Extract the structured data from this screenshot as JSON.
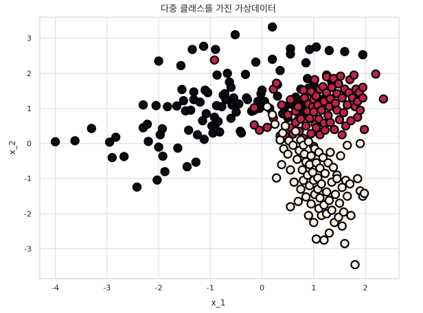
{
  "chart_data": {
    "type": "scatter",
    "title": "다중 클래스를 가진 가상데이터",
    "xlabel": "x_1",
    "ylabel": "x_2",
    "xlim": [
      -4.3,
      2.65
    ],
    "ylim": [
      -3.85,
      3.6
    ],
    "xticks": [
      -4,
      -3,
      -2,
      -1,
      0,
      1,
      2
    ],
    "yticks": [
      -3,
      -2,
      -1,
      0,
      1,
      2,
      3
    ],
    "grid": true,
    "legend": "none",
    "series": [
      {
        "color": "#0b0b18",
        "points": [
          [
            -4.0,
            0.05
          ],
          [
            -3.62,
            0.08
          ],
          [
            -3.3,
            0.43
          ],
          [
            -2.95,
            0.04
          ],
          [
            -2.9,
            -0.4
          ],
          [
            -2.83,
            0.18
          ],
          [
            -2.67,
            -0.37
          ],
          [
            -2.42,
            -1.24
          ],
          [
            -2.3,
            1.1
          ],
          [
            -2.3,
            0.45
          ],
          [
            -2.22,
            0.55
          ],
          [
            -2.2,
            0.06
          ],
          [
            -2.05,
            1.08
          ],
          [
            -2.03,
            -1.04
          ],
          [
            -2.0,
            2.35
          ],
          [
            -2.0,
            -0.1
          ],
          [
            -1.97,
            0.25
          ],
          [
            -1.93,
            0.42
          ],
          [
            -1.92,
            -0.36
          ],
          [
            -1.88,
            -0.8
          ],
          [
            -1.83,
            1.05
          ],
          [
            -1.65,
            1.07
          ],
          [
            -1.63,
            -0.13
          ],
          [
            -1.57,
            2.22
          ],
          [
            -1.55,
            1.54
          ],
          [
            -1.52,
            1.22
          ],
          [
            -1.48,
            0.93
          ],
          [
            -1.45,
            -0.66
          ],
          [
            -1.42,
            0.38
          ],
          [
            -1.38,
            0.95
          ],
          [
            -1.35,
            2.68
          ],
          [
            -1.32,
            1.25
          ],
          [
            -1.32,
            1.47
          ],
          [
            -1.28,
            -0.53
          ],
          [
            -1.25,
            0.25
          ],
          [
            -1.2,
            1.18
          ],
          [
            -1.15,
            0.65
          ],
          [
            -1.13,
            2.77
          ],
          [
            -1.12,
            0.12
          ],
          [
            -1.1,
            1.52
          ],
          [
            -1.08,
            0.85
          ],
          [
            -1.05,
            1.45
          ],
          [
            -0.97,
            0.5
          ],
          [
            -0.95,
            0.3
          ],
          [
            -0.92,
            0.75
          ],
          [
            -0.9,
            2.68
          ],
          [
            -0.9,
            0.55
          ],
          [
            -0.88,
            1.08
          ],
          [
            -0.87,
            1.95
          ],
          [
            -0.85,
            0.63
          ],
          [
            -0.82,
            0.33
          ],
          [
            -0.78,
            1.05
          ],
          [
            -0.75,
            1.38
          ],
          [
            -0.72,
            1.42
          ],
          [
            -0.7,
            1.25
          ],
          [
            -0.67,
            2.0
          ],
          [
            -0.63,
            1.75
          ],
          [
            -0.6,
            1.6
          ],
          [
            -0.6,
            0.72
          ],
          [
            -0.58,
            1.1
          ],
          [
            -0.55,
            1.3
          ],
          [
            -0.52,
            3.1
          ],
          [
            -0.5,
            0.9
          ],
          [
            -0.45,
            1.13
          ],
          [
            -0.42,
            0.35
          ],
          [
            -0.4,
            0.3
          ],
          [
            -0.32,
            1.97
          ],
          [
            -0.3,
            1.3
          ],
          [
            -0.28,
            1.25
          ],
          [
            -0.2,
            0.92
          ],
          [
            -0.15,
            0.95
          ],
          [
            -0.12,
            2.32
          ],
          [
            -0.08,
            1.2
          ],
          [
            -0.05,
            1.0
          ],
          [
            -0.02,
            1.42
          ],
          [
            0.0,
            1.52
          ],
          [
            0.05,
            1.2
          ],
          [
            0.1,
            1.05
          ],
          [
            0.15,
            1.0
          ],
          [
            0.2,
            3.32
          ],
          [
            0.2,
            2.4
          ],
          [
            0.3,
            1.68
          ],
          [
            0.3,
            1.35
          ],
          [
            0.35,
            2.08
          ],
          [
            0.4,
            0.85
          ],
          [
            0.45,
            1.06
          ],
          [
            0.5,
            0.73
          ],
          [
            0.55,
            2.7
          ],
          [
            0.55,
            2.55
          ],
          [
            0.6,
            1.1
          ],
          [
            0.65,
            1.32
          ],
          [
            0.7,
            1.12
          ],
          [
            0.7,
            0.68
          ],
          [
            0.72,
            0.93
          ],
          [
            0.75,
            1.55
          ],
          [
            0.75,
            1.08
          ],
          [
            0.8,
            0.82
          ],
          [
            0.82,
            1.3
          ],
          [
            0.85,
            2.3
          ],
          [
            0.88,
            1.85
          ],
          [
            0.9,
            1.58
          ],
          [
            0.92,
            2.68
          ],
          [
            0.95,
            1.1
          ],
          [
            0.98,
            1.43
          ],
          [
            1.0,
            1.7
          ],
          [
            1.03,
            1.3
          ],
          [
            1.05,
            2.75
          ],
          [
            1.1,
            1.53
          ],
          [
            1.15,
            1.12
          ],
          [
            1.2,
            1.28
          ],
          [
            1.25,
            1.95
          ],
          [
            1.3,
            2.65
          ],
          [
            1.35,
            1.75
          ],
          [
            1.45,
            1.85
          ],
          [
            1.6,
            2.62
          ],
          [
            1.95,
            2.53
          ]
        ]
      },
      {
        "color": "#c0224a",
        "points": [
          [
            -0.92,
            2.38
          ],
          [
            -0.15,
            1.02
          ],
          [
            -0.15,
            0.53
          ],
          [
            -0.05,
            0.38
          ],
          [
            0.1,
            0.46
          ],
          [
            0.22,
            1.55
          ],
          [
            0.22,
            0.72
          ],
          [
            0.28,
            1.72
          ],
          [
            0.35,
            0.22
          ],
          [
            0.38,
            1.1
          ],
          [
            0.45,
            0.22
          ],
          [
            0.5,
            0.82
          ],
          [
            0.55,
            1.25
          ],
          [
            0.55,
            0.45
          ],
          [
            0.6,
            0.27
          ],
          [
            0.65,
            0.92
          ],
          [
            0.65,
            0.6
          ],
          [
            0.7,
            1.05
          ],
          [
            0.72,
            0.35
          ],
          [
            0.75,
            0.7
          ],
          [
            0.8,
            1.52
          ],
          [
            0.8,
            0.15
          ],
          [
            0.82,
            1.3
          ],
          [
            0.85,
            0.5
          ],
          [
            0.88,
            0.92
          ],
          [
            0.9,
            1.12
          ],
          [
            0.92,
            0.72
          ],
          [
            0.95,
            1.48
          ],
          [
            0.95,
            0.28
          ],
          [
            0.98,
            1.05
          ],
          [
            1.0,
            1.25
          ],
          [
            1.0,
            0.9
          ],
          [
            1.0,
            -0.08
          ],
          [
            1.02,
            1.82
          ],
          [
            1.03,
            0.55
          ],
          [
            1.05,
            1.35
          ],
          [
            1.05,
            0.45
          ],
          [
            1.08,
            1.1
          ],
          [
            1.1,
            0.7
          ],
          [
            1.12,
            1.55
          ],
          [
            1.12,
            0.25
          ],
          [
            1.15,
            0.95
          ],
          [
            1.18,
            1.62
          ],
          [
            1.2,
            1.2
          ],
          [
            1.2,
            0.58
          ],
          [
            1.22,
            0.38
          ],
          [
            1.25,
            1.45
          ],
          [
            1.25,
            1.9
          ],
          [
            1.28,
            0.8
          ],
          [
            1.3,
            1.05
          ],
          [
            1.32,
            1.28
          ],
          [
            1.32,
            0.6
          ],
          [
            1.35,
            1.6
          ],
          [
            1.38,
            1.85
          ],
          [
            1.4,
            0.4
          ],
          [
            1.42,
            1.15
          ],
          [
            1.45,
            0.95
          ],
          [
            1.45,
            1.42
          ],
          [
            1.48,
            1.7
          ],
          [
            1.5,
            0.68
          ],
          [
            1.52,
            1.92
          ],
          [
            1.55,
            1.3
          ],
          [
            1.55,
            0.25
          ],
          [
            1.58,
            0.88
          ],
          [
            1.6,
            1.55
          ],
          [
            1.62,
            0.5
          ],
          [
            1.65,
            1.1
          ],
          [
            1.68,
            1.45
          ],
          [
            1.7,
            1.82
          ],
          [
            1.72,
            0.65
          ],
          [
            1.75,
            1.3
          ],
          [
            1.78,
            1.95
          ],
          [
            1.8,
            1.05
          ],
          [
            1.82,
            1.55
          ],
          [
            1.85,
            0.75
          ],
          [
            1.85,
            1.2
          ],
          [
            1.88,
            1.45
          ],
          [
            1.9,
            0.95
          ],
          [
            1.95,
            1.3
          ],
          [
            1.95,
            1.6
          ],
          [
            1.98,
            0.4
          ],
          [
            2.2,
            1.98
          ],
          [
            2.35,
            1.27
          ]
        ]
      },
      {
        "color": "#fdf0e6",
        "points": [
          [
            0.1,
            1.05
          ],
          [
            0.2,
            0.82
          ],
          [
            0.25,
            0.55
          ],
          [
            0.28,
            -0.98
          ],
          [
            0.35,
            0.1
          ],
          [
            0.38,
            -0.6
          ],
          [
            0.4,
            0.3
          ],
          [
            0.42,
            -0.15
          ],
          [
            0.45,
            0.5
          ],
          [
            0.5,
            -0.3
          ],
          [
            0.52,
            0.08
          ],
          [
            0.55,
            -0.75
          ],
          [
            0.55,
            -1.8
          ],
          [
            0.6,
            -0.05
          ],
          [
            0.62,
            -1.1
          ],
          [
            0.65,
            0.35
          ],
          [
            0.68,
            -0.45
          ],
          [
            0.7,
            -1.65
          ],
          [
            0.72,
            -0.2
          ],
          [
            0.75,
            -1.3
          ],
          [
            0.75,
            0.1
          ],
          [
            0.78,
            -0.75
          ],
          [
            0.8,
            -1.05
          ],
          [
            0.8,
            -0.05
          ],
          [
            0.82,
            -0.3
          ],
          [
            0.85,
            -0.52
          ],
          [
            0.85,
            -1.52
          ],
          [
            0.88,
            -0.9
          ],
          [
            0.9,
            0.05
          ],
          [
            0.9,
            -2.05
          ],
          [
            0.92,
            -1.2
          ],
          [
            0.92,
            -0.6
          ],
          [
            0.95,
            -0.35
          ],
          [
            0.95,
            -1.72
          ],
          [
            0.98,
            -0.82
          ],
          [
            1.0,
            -1.05
          ],
          [
            1.0,
            -2.25
          ],
          [
            1.02,
            -0.15
          ],
          [
            1.02,
            -1.45
          ],
          [
            1.05,
            -0.55
          ],
          [
            1.05,
            -2.72
          ],
          [
            1.08,
            -0.98
          ],
          [
            1.08,
            -1.3
          ],
          [
            1.1,
            -0.25
          ],
          [
            1.1,
            -1.85
          ],
          [
            1.12,
            -0.7
          ],
          [
            1.12,
            -1.55
          ],
          [
            1.15,
            -2.05
          ],
          [
            1.15,
            -1.15
          ],
          [
            1.18,
            -0.4
          ],
          [
            1.2,
            -1.75
          ],
          [
            1.2,
            -2.75
          ],
          [
            1.22,
            -0.85
          ],
          [
            1.25,
            -1.38
          ],
          [
            1.25,
            -2.0
          ],
          [
            1.28,
            -0.55
          ],
          [
            1.3,
            -1.62
          ],
          [
            1.3,
            -2.55
          ],
          [
            1.32,
            -0.25
          ],
          [
            1.35,
            -1.1
          ],
          [
            1.35,
            -1.9
          ],
          [
            1.38,
            -0.68
          ],
          [
            1.4,
            -2.25
          ],
          [
            1.42,
            -1.45
          ],
          [
            1.45,
            -0.9
          ],
          [
            1.45,
            -1.0
          ],
          [
            1.48,
            -2.1
          ],
          [
            1.5,
            -1.7
          ],
          [
            1.52,
            -0.35
          ],
          [
            1.55,
            -1.25
          ],
          [
            1.55,
            -2.35
          ],
          [
            1.58,
            -1.95
          ],
          [
            1.6,
            -2.85
          ],
          [
            1.62,
            -1.05
          ],
          [
            1.65,
            -1.5
          ],
          [
            1.7,
            -1.15
          ],
          [
            1.72,
            -2.05
          ],
          [
            1.8,
            -3.45
          ],
          [
            1.85,
            -1.0
          ],
          [
            1.9,
            -1.35
          ],
          [
            1.95,
            -1.5
          ],
          [
            1.9,
            0.0
          ],
          [
            1.98,
            -1.42
          ],
          [
            1.65,
            -0.05
          ]
        ]
      }
    ]
  }
}
